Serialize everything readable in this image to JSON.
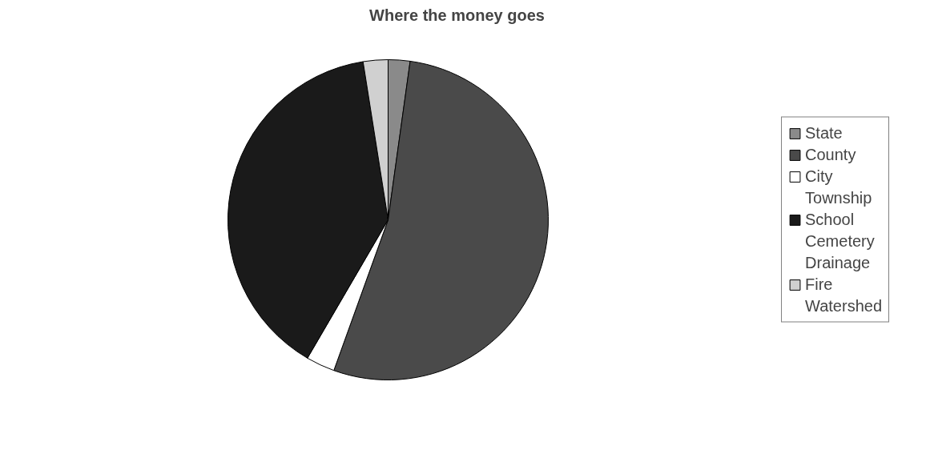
{
  "chart_data": {
    "type": "pie",
    "title": "Where the money goes",
    "categories": [
      "State",
      "County",
      "City",
      "Township",
      "School",
      "Cemetery",
      "Drainage",
      "Fire",
      "Watershed"
    ],
    "values": [
      2.2,
      53.3,
      2.9,
      0,
      39.1,
      0,
      0,
      2.5,
      0
    ],
    "colors": [
      "#8a8a8a",
      "#4a4a4a",
      "#ffffff",
      "#ffffff",
      "#1a1a1a",
      "#b0b0b0",
      "#3a3a3a",
      "#d0d0d0",
      "#111111"
    ],
    "legend": "right"
  }
}
